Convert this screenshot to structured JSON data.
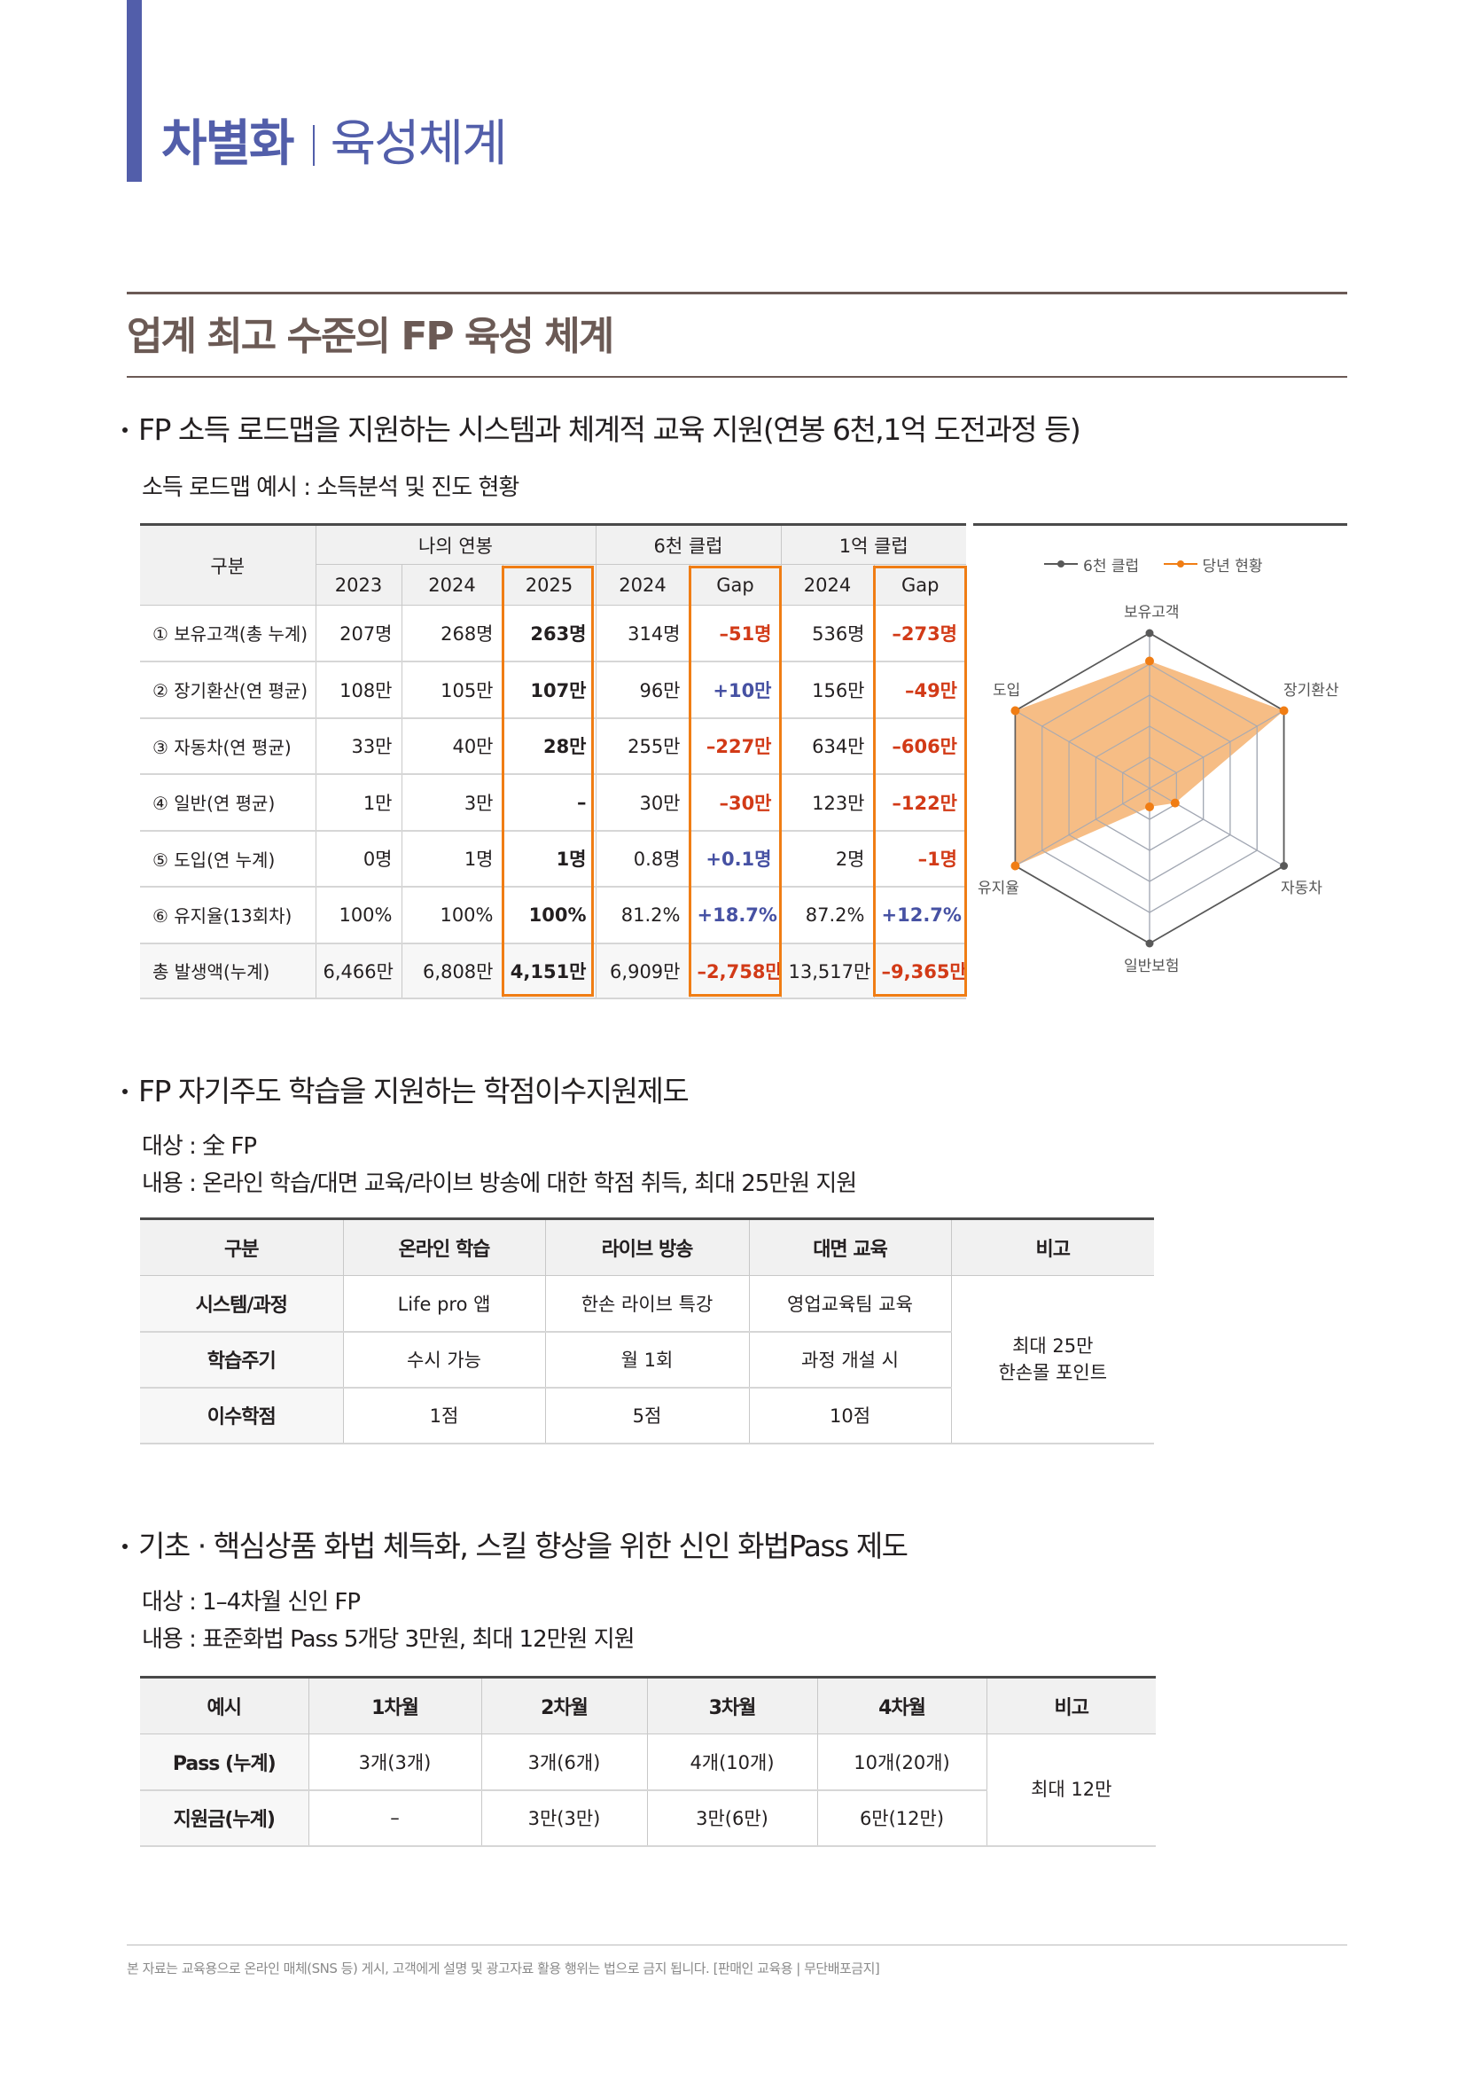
{
  "header": {
    "title_strong": "차별화",
    "title_light": "육성체계"
  },
  "section": {
    "title": "업계 최고 수준의 FP 육성 체계"
  },
  "block1": {
    "bullet": "FP 소득 로드맵을 지원하는 시스템과 체계적 교육 지원(연봉 6천,1억 도전과정 등)",
    "subtitle": "소득 로드맵 예시 : 소득분석 및 진도 현황",
    "table": {
      "header_label": "구분",
      "group_headers": [
        "나의 연봉",
        "6천 클럽",
        "1억 클럽"
      ],
      "sub_headers": [
        "2023",
        "2024",
        "2025",
        "2024",
        "Gap",
        "2024",
        "Gap"
      ],
      "rows": [
        {
          "label": "① 보유고객(총 누계)",
          "cells": [
            "207명",
            "268명",
            "263명",
            "314명",
            "–51명",
            "536명",
            "–273명"
          ],
          "gap_types": [
            "neg",
            "neg"
          ]
        },
        {
          "label": "② 장기환산(연 평균)",
          "cells": [
            "108만",
            "105만",
            "107만",
            "96만",
            "+10만",
            "156만",
            "–49만"
          ],
          "gap_types": [
            "pos",
            "neg"
          ]
        },
        {
          "label": "③ 자동차(연 평균)",
          "cells": [
            "33만",
            "40만",
            "28만",
            "255만",
            "–227만",
            "634만",
            "–606만"
          ],
          "gap_types": [
            "neg",
            "neg"
          ]
        },
        {
          "label": "④ 일반(연 평균)",
          "cells": [
            "1만",
            "3만",
            "–",
            "30만",
            "–30만",
            "123만",
            "–122만"
          ],
          "gap_types": [
            "neg",
            "neg"
          ]
        },
        {
          "label": "⑤ 도입(연 누계)",
          "cells": [
            "0명",
            "1명",
            "1명",
            "0.8명",
            "+0.1명",
            "2명",
            "–1명"
          ],
          "gap_types": [
            "pos",
            "neg"
          ]
        },
        {
          "label": "⑥ 유지율(13회차)",
          "cells": [
            "100%",
            "100%",
            "100%",
            "81.2%",
            "+18.7%",
            "87.2%",
            "+12.7%"
          ],
          "gap_types": [
            "pos",
            "pos"
          ]
        },
        {
          "label": "총 발생액(누계)",
          "cells": [
            "6,466만",
            "6,808만",
            "4,151만",
            "6,909만",
            "–2,758만",
            "13,517만",
            "–9,365만"
          ],
          "gap_types": [
            "neg",
            "neg"
          ]
        }
      ]
    }
  },
  "chart_data": {
    "type": "radar",
    "title": "",
    "categories": [
      "보유고객",
      "장기환산",
      "자동차",
      "일반보험",
      "유지율",
      "도입"
    ],
    "series": [
      {
        "name": "6천 클럽",
        "color": "#595959",
        "values": [
          1.0,
          1.0,
          1.0,
          1.0,
          1.0,
          1.0
        ]
      },
      {
        "name": "당년 현황",
        "color": "#f07d14",
        "fill": "#f6bd85",
        "values": [
          0.82,
          1.0,
          0.19,
          0.12,
          1.0,
          1.0
        ]
      }
    ],
    "rings": 5,
    "range": [
      0,
      1
    ],
    "legend_position": "top"
  },
  "block2": {
    "bullet": "FP 자기주도 학습을 지원하는 학점이수지원제도",
    "target": "대상 : 全 FP",
    "content": "내용 : 온라인 학습/대면 교육/라이브 방송에 대한 학점 취득, 최대 25만원 지원",
    "table": {
      "headers": [
        "구분",
        "온라인 학습",
        "라이브 방송",
        "대면 교육",
        "비고"
      ],
      "rows": [
        {
          "label": "시스템/과정",
          "cells": [
            "Life pro 앱",
            "한손 라이브 특강",
            "영업교육팀 교육"
          ]
        },
        {
          "label": "학습주기",
          "cells": [
            "수시 가능",
            "월 1회",
            "과정 개설 시"
          ]
        },
        {
          "label": "이수학점",
          "cells": [
            "1점",
            "5점",
            "10점"
          ]
        }
      ],
      "note_line1": "최대 25만",
      "note_line2": "한손몰 포인트"
    }
  },
  "block3": {
    "bullet": "기초 · 핵심상품 화법 체득화, 스킬 향상을 위한 신인 화법Pass 제도",
    "target": "대상 : 1–4차월 신인 FP",
    "content": "내용 : 표준화법 Pass 5개당 3만원, 최대 12만원 지원",
    "table": {
      "headers": [
        "예시",
        "1차월",
        "2차월",
        "3차월",
        "4차월",
        "비고"
      ],
      "rows": [
        {
          "label": "Pass (누계)",
          "cells": [
            "3개(3개)",
            "3개(6개)",
            "4개(10개)",
            "10개(20개)"
          ]
        },
        {
          "label": "지원금(누계)",
          "cells": [
            "–",
            "3만(3만)",
            "3만(6만)",
            "6만(12만)"
          ]
        }
      ],
      "note": "최대 12만"
    }
  },
  "footer": {
    "text": "본 자료는 교육용으로 온라인 매체(SNS 등) 게시, 고객에게 설명 및 광고자료 활용 행위는 법으로 금지 됩니다. [판매인 교육용 | 무단배포금지]"
  }
}
